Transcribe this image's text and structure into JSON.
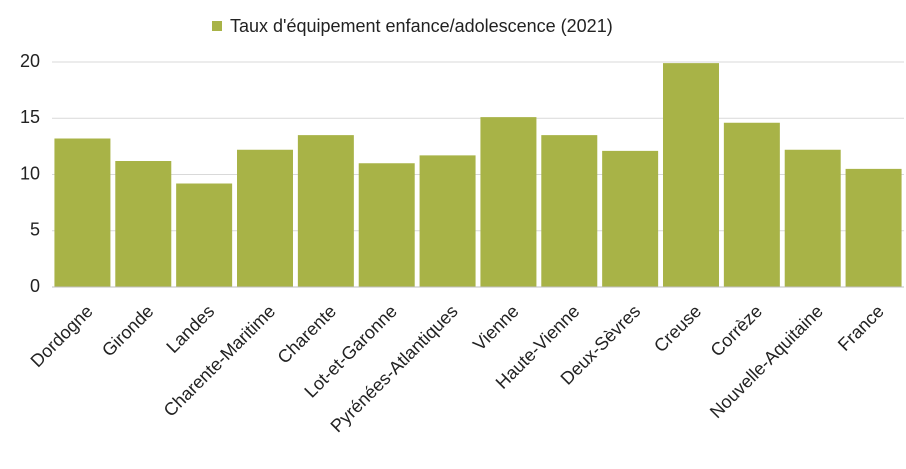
{
  "chart_data": {
    "type": "bar",
    "categories": [
      "Dordogne",
      "Gironde",
      "Landes",
      "Charente-Maritime",
      "Charente",
      "Lot-et-Garonne",
      "Pyrénées-Atlantiques",
      "Vienne",
      "Haute-Vienne",
      "Deux-Sèvres",
      "Creuse",
      "Corrèze",
      "Nouvelle-Aquitaine",
      "France"
    ],
    "series": [
      {
        "name": "Taux d'équipement enfance/adolescence (2021)",
        "color": "#a8b347",
        "values": [
          13.2,
          11.2,
          9.2,
          12.2,
          13.5,
          11.0,
          11.7,
          15.1,
          13.5,
          12.1,
          19.9,
          14.6,
          12.2,
          10.5
        ]
      }
    ],
    "ylim": [
      0,
      20
    ],
    "yticks": [
      0,
      5,
      10,
      15,
      20
    ],
    "grid": true,
    "legend": "top"
  }
}
